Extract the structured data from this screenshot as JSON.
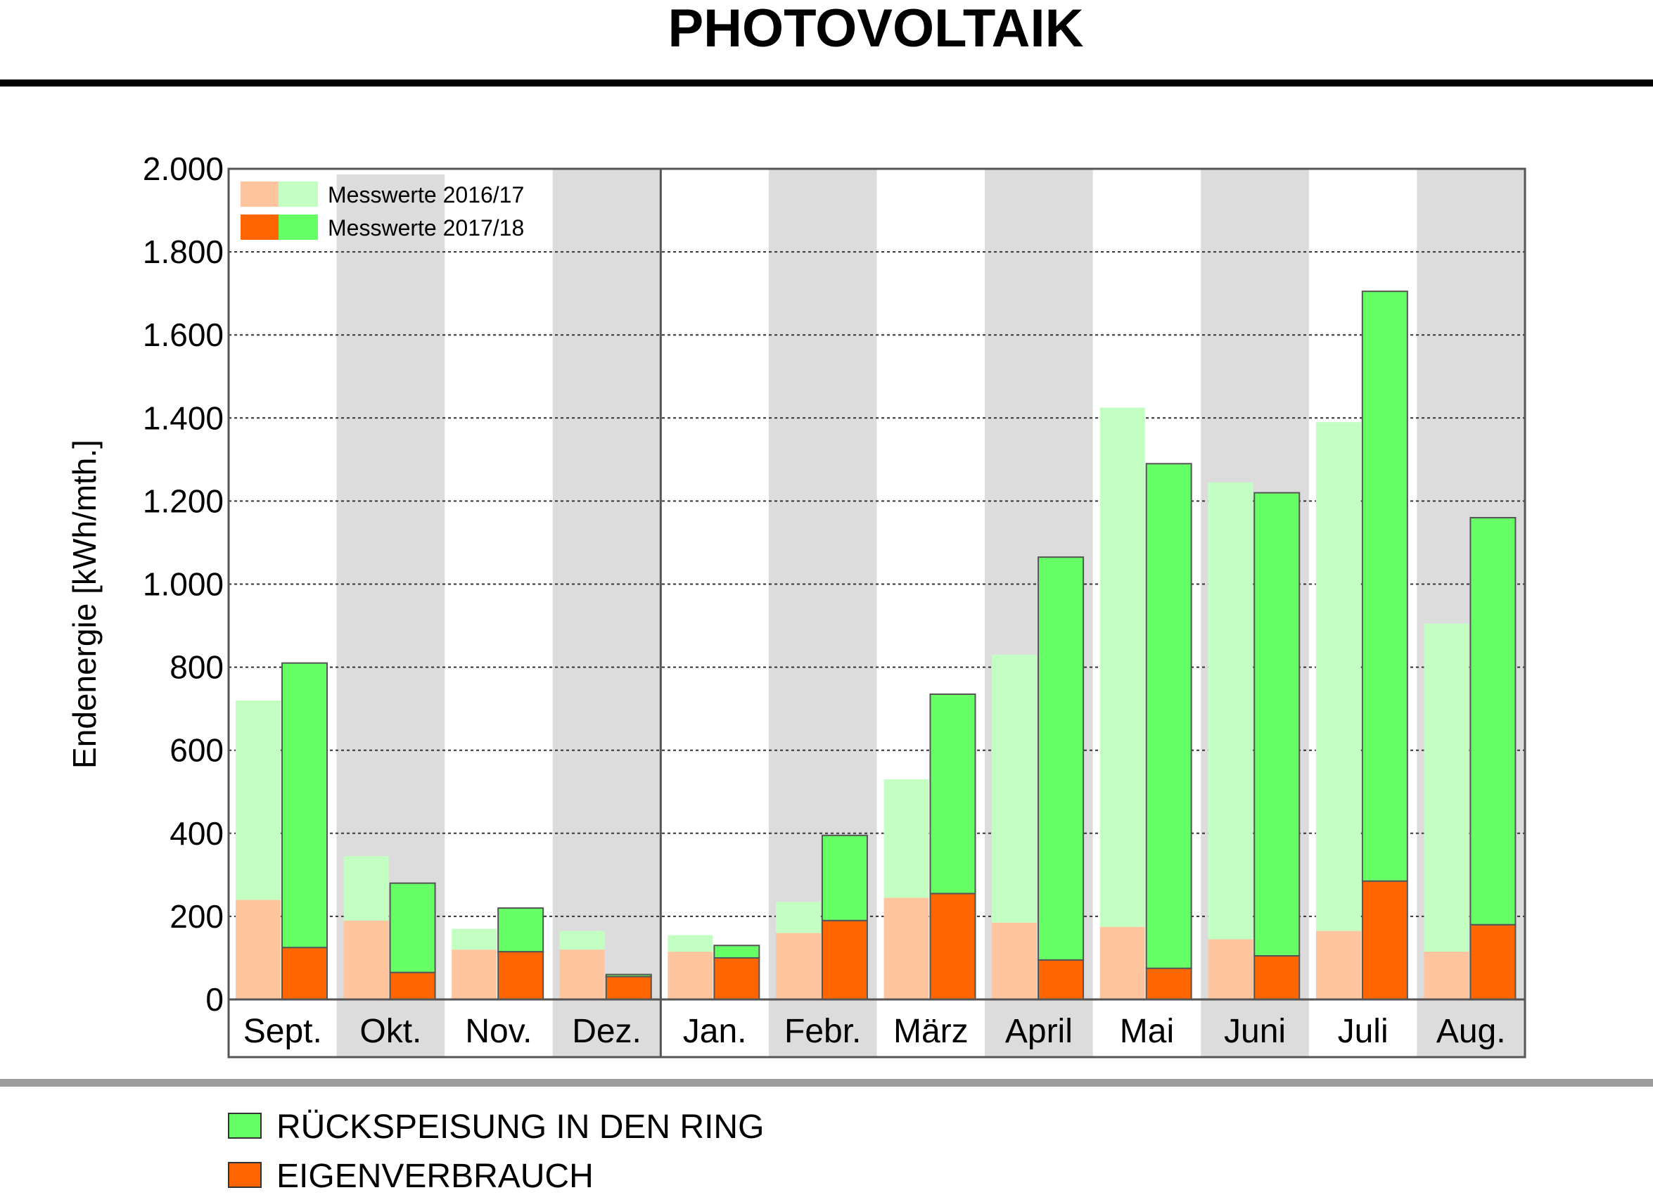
{
  "chart_data": {
    "type": "bar",
    "title": "PHOTOVOLTAIK",
    "ylabel": "Endenergie [kWh/mth.]",
    "xlabel": "",
    "ylim": [
      0,
      2000
    ],
    "yticks": [
      0,
      200,
      400,
      600,
      800,
      1000,
      1200,
      1400,
      1600,
      1800,
      2000
    ],
    "ytick_labels": [
      "0",
      "200",
      "400",
      "600",
      "800",
      "1.000",
      "1.200",
      "1.400",
      "1.600",
      "1.800",
      "2.000"
    ],
    "grid": true,
    "categories": [
      "Sept.",
      "Okt.",
      "Nov.",
      "Dez.",
      "Jan.",
      "Febr.",
      "März",
      "April",
      "Mai",
      "Juni",
      "Juli",
      "Aug."
    ],
    "series": [
      {
        "name": "Eigenverbrauch 2016/17",
        "values": [
          240,
          190,
          120,
          120,
          115,
          160,
          245,
          185,
          175,
          145,
          165,
          115
        ]
      },
      {
        "name": "Rückspeisung 2016/17",
        "values": [
          480,
          155,
          50,
          45,
          40,
          75,
          285,
          645,
          1250,
          1100,
          1225,
          790
        ]
      },
      {
        "name": "Eigenverbrauch 2017/18",
        "values": [
          125,
          65,
          115,
          55,
          100,
          190,
          255,
          95,
          75,
          105,
          285,
          180
        ]
      },
      {
        "name": "Rückspeisung 2017/18",
        "values": [
          685,
          215,
          105,
          5,
          30,
          205,
          480,
          970,
          1215,
          1115,
          1420,
          980
        ]
      }
    ],
    "inner_legend": [
      {
        "label": "Messwerte 2016/17",
        "colors": [
          "#ffc59f",
          "#c3ffc3"
        ]
      },
      {
        "label": "Messwerte 2017/18",
        "colors": [
          "#ff6600",
          "#66ff66"
        ]
      }
    ],
    "legend": [
      {
        "label": "RÜCKSPEISUNG IN DEN RING",
        "color": "#66ff66"
      },
      {
        "label": "EIGENVERBRAUCH",
        "color": "#ff6600"
      }
    ],
    "colors": {
      "eigen_2016": "#ffc59f",
      "rueck_2016": "#c3ffc3",
      "eigen_2017": "#ff6600",
      "rueck_2017": "#66ff66",
      "band": "#dcdcdc",
      "frame": "#555555",
      "bottom_rule": "#9b9b9b"
    }
  }
}
